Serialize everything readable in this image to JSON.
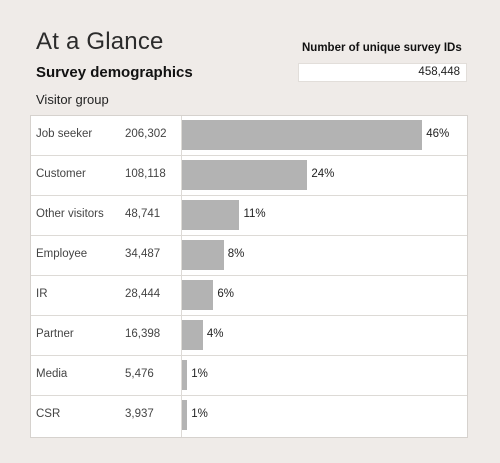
{
  "page_title": "At a Glance",
  "section_title": "Survey demographics",
  "group_label": "Visitor group",
  "metric": {
    "label": "Number of unique survey IDs",
    "value": "458,448"
  },
  "chart_data": {
    "type": "bar",
    "orientation": "horizontal",
    "title": "",
    "categories": [
      "Job seeker",
      "Customer",
      "Other visitors",
      "Employee",
      "IR",
      "Partner",
      "Media",
      "CSR"
    ],
    "counts": [
      "206,302",
      "108,118",
      "48,741",
      "34,487",
      "28,444",
      "16,398",
      "5,476",
      "3,937"
    ],
    "values": [
      46,
      24,
      11,
      8,
      6,
      4,
      1,
      1
    ],
    "percent_labels": [
      "46%",
      "24%",
      "11%",
      "8%",
      "6%",
      "4%",
      "1%",
      "1%"
    ],
    "xlim": [
      0,
      54
    ],
    "grid": false,
    "bar_color": "#b3b3b3"
  }
}
